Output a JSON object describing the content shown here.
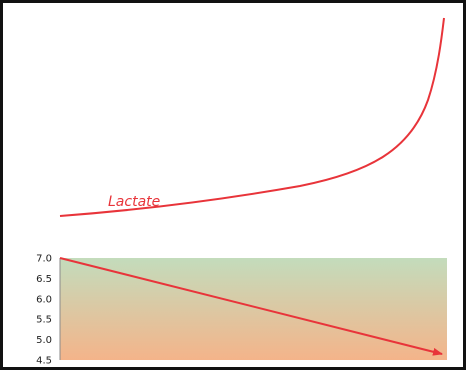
{
  "chart_data": [
    {
      "type": "line",
      "title": "",
      "xlabel": "",
      "ylabel": "",
      "series": [
        {
          "name": "Lactate",
          "color": "#e8343a",
          "shape": "exponential-rise"
        }
      ],
      "annotations": [
        "Lactate"
      ]
    },
    {
      "type": "line",
      "title": "",
      "xlabel": "",
      "ylabel": "",
      "yticks": [
        "7.0",
        "6.5",
        "6.0",
        "5.5",
        "5.0",
        "4.5"
      ],
      "ylim": [
        4.5,
        7.0
      ],
      "x": [
        0,
        1
      ],
      "series": [
        {
          "values": [
            7.0,
            4.5
          ],
          "color": "#e8343a",
          "arrow": true
        }
      ],
      "background_gradient": {
        "top": "#c3dcbc",
        "bottom": "#f4b48a"
      },
      "grid": false,
      "legend": "none"
    }
  ]
}
